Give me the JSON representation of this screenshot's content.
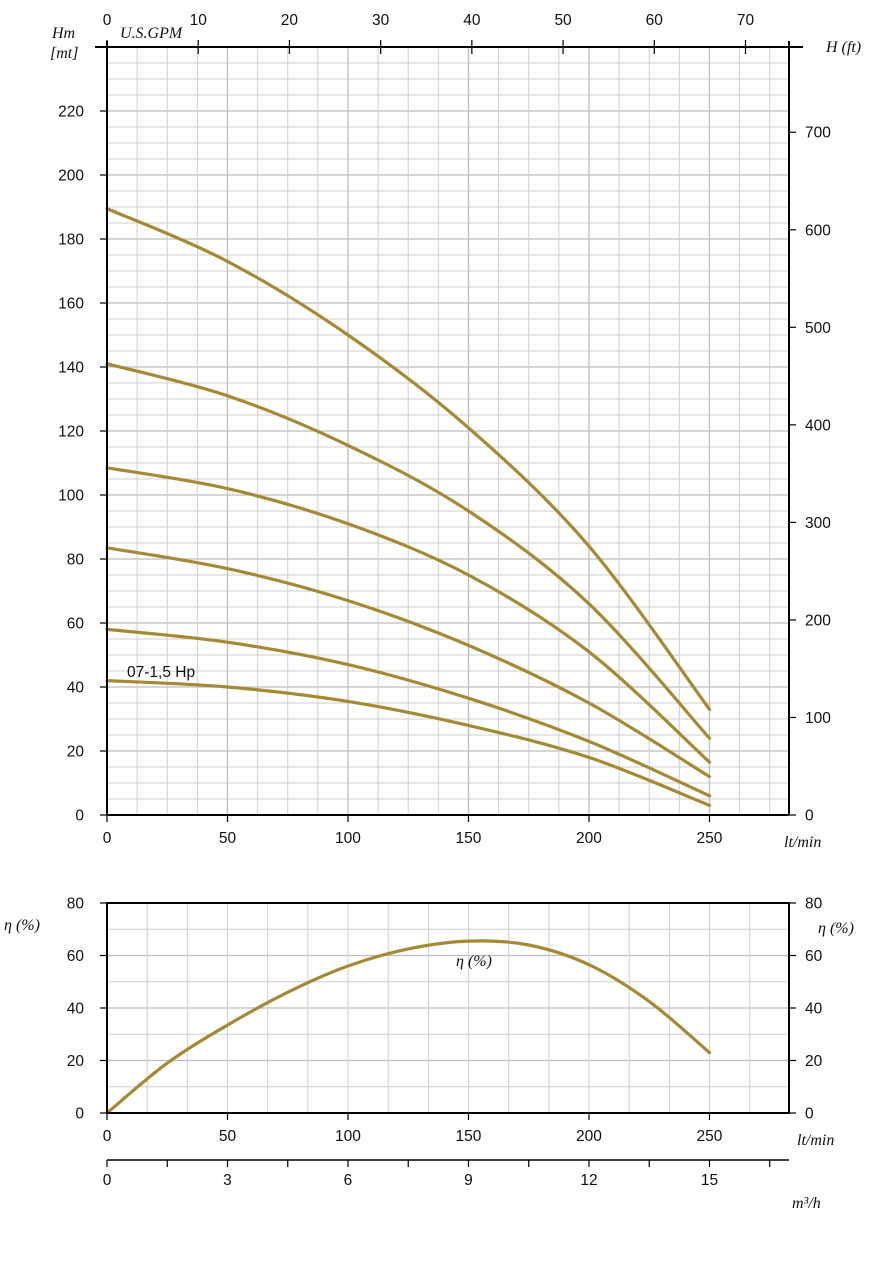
{
  "chart_data": [
    {
      "type": "line",
      "xlabel": "lt/min",
      "ylabel": "Hm [mt]",
      "ylabel_lines": [
        "Hm",
        "[mt]"
      ],
      "xlim": [
        0,
        283
      ],
      "ylim": [
        0,
        240
      ],
      "x_ticks": [
        "0",
        "50",
        "100",
        "150",
        "200",
        "250"
      ],
      "y_ticks": [
        "0",
        "20",
        "40",
        "60",
        "80",
        "100",
        "120",
        "140",
        "160",
        "180",
        "200",
        "220"
      ],
      "top_axis": {
        "label": "U.S.GPM",
        "ticks": [
          "0",
          "10",
          "20",
          "30",
          "40",
          "50",
          "60",
          "70"
        ]
      },
      "right_axis": {
        "label": "H (ft)",
        "ticks": [
          "0",
          "100",
          "200",
          "300",
          "400",
          "500",
          "600",
          "700"
        ]
      },
      "annotation": "07-1,5 Hp",
      "grid": true,
      "series": [
        {
          "x": [
            0,
            50,
            100,
            150,
            200,
            250
          ],
          "y": [
            42,
            40,
            35.5,
            28,
            18,
            3
          ]
        },
        {
          "x": [
            0,
            50,
            100,
            150,
            200,
            250
          ],
          "y": [
            58,
            54,
            47,
            36.5,
            23,
            6
          ]
        },
        {
          "x": [
            0,
            50,
            100,
            150,
            200,
            250
          ],
          "y": [
            83.5,
            77,
            67,
            53,
            35,
            12
          ]
        },
        {
          "x": [
            0,
            50,
            100,
            150,
            200,
            250
          ],
          "y": [
            108.5,
            102,
            91,
            75,
            51,
            16.5
          ]
        },
        {
          "x": [
            0,
            50,
            100,
            150,
            200,
            250
          ],
          "y": [
            141,
            131,
            115.5,
            95,
            66,
            24
          ]
        },
        {
          "x": [
            0,
            50,
            100,
            150,
            200,
            250
          ],
          "y": [
            189.5,
            173,
            150,
            121,
            84,
            33
          ]
        }
      ]
    },
    {
      "type": "line",
      "xlabel": "lt/min",
      "ylabel": "η (%)",
      "xlim": [
        0,
        283
      ],
      "ylim": [
        0,
        80
      ],
      "x_ticks": [
        "0",
        "50",
        "100",
        "150",
        "200",
        "250"
      ],
      "y_ticks": [
        "0",
        "20",
        "40",
        "60",
        "80"
      ],
      "right_axis": {
        "label": "η (%)",
        "ticks": [
          "0",
          "20",
          "40",
          "60",
          "80"
        ]
      },
      "secondary_x_axis": {
        "label": "m³/h",
        "ticks": [
          "0",
          "3",
          "6",
          "9",
          "12",
          "15"
        ]
      },
      "annotation": "η (%)",
      "grid": true,
      "series": [
        {
          "x": [
            0,
            25,
            50,
            75,
            100,
            125,
            150,
            175,
            200,
            225,
            250
          ],
          "y": [
            0,
            19,
            33.5,
            46,
            56,
            62.5,
            65.5,
            64,
            56.5,
            42.5,
            23
          ]
        }
      ]
    }
  ],
  "colors": {
    "curve": "#a58a35",
    "axis": "#000000",
    "grid": "#cccccc"
  }
}
